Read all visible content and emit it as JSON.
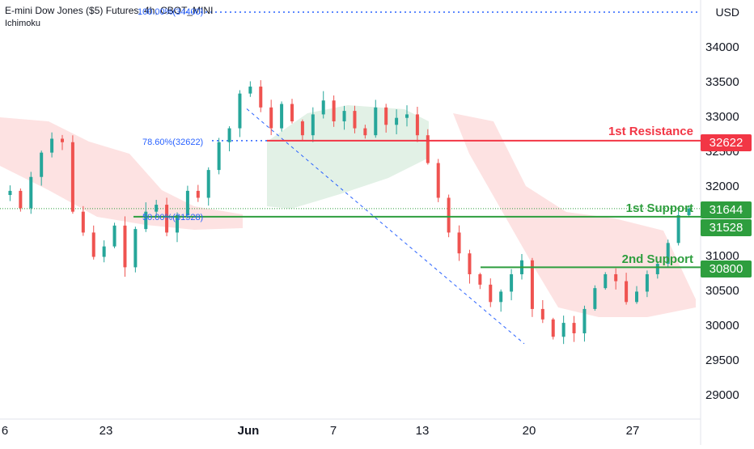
{
  "header": {
    "title": "E-mini Dow Jones ($5) Futures, 4h, CBOT_MINI",
    "indicator": "Ichimoku",
    "top_fib_label": "100.00%(34400)"
  },
  "currency": "USD",
  "colors": {
    "up": "#26a69a",
    "down": "#ef5350",
    "resistance": "#f23645",
    "support": "#2e9e3e",
    "cloud_bull": "#e2f1e6",
    "cloud_bear": "#fde2e2",
    "fib": "#2962ff"
  },
  "chart_data": {
    "type": "candlestick",
    "y_axis": {
      "ticks": [
        "34000",
        "33500",
        "33000",
        "32500",
        "32000",
        "31500",
        "31000",
        "30500",
        "30000",
        "29500",
        "29000"
      ],
      "range": [
        28800,
        34500
      ]
    },
    "x_axis": {
      "ticks": [
        "6",
        "23",
        "Jun",
        "7",
        "13",
        "20",
        "27"
      ]
    },
    "levels": [
      {
        "label": "1st Resistance",
        "value": 32622,
        "tag": "32622",
        "kind": "resistance"
      },
      {
        "label": "1st Support",
        "value": 31528,
        "tag": "31528",
        "kind": "support"
      },
      {
        "label": "2nd Support",
        "value": 30800,
        "tag": "30800",
        "kind": "support"
      }
    ],
    "current_price": {
      "value": 31644,
      "tag": "31644"
    },
    "fibonacci": [
      {
        "label": "78.60%(32622)",
        "value": 32622
      },
      {
        "label": "50.00%(31528)",
        "value": 31528
      }
    ],
    "trendline": {
      "from": 33080,
      "to": 29700
    },
    "price_path": [
      31900,
      31650,
      32100,
      32450,
      32650,
      32600,
      31600,
      31300,
      30950,
      31100,
      31400,
      30800,
      31350,
      31600,
      31700,
      31300,
      31550,
      31900,
      31800,
      32200,
      32600,
      32800,
      33300,
      33400,
      33100,
      32800,
      33150,
      32900,
      32700,
      33000,
      33200,
      32900,
      33050,
      32800,
      32700,
      33100,
      32850,
      32950,
      33000,
      32700,
      32300,
      31800,
      31300,
      31000,
      30700,
      30550,
      30300,
      30450,
      30700,
      30900,
      30200,
      30050,
      29800,
      30000,
      29850,
      30200,
      30500,
      30700,
      30600,
      30300,
      30450,
      30700,
      30850,
      31150,
      31550,
      31644
    ]
  }
}
